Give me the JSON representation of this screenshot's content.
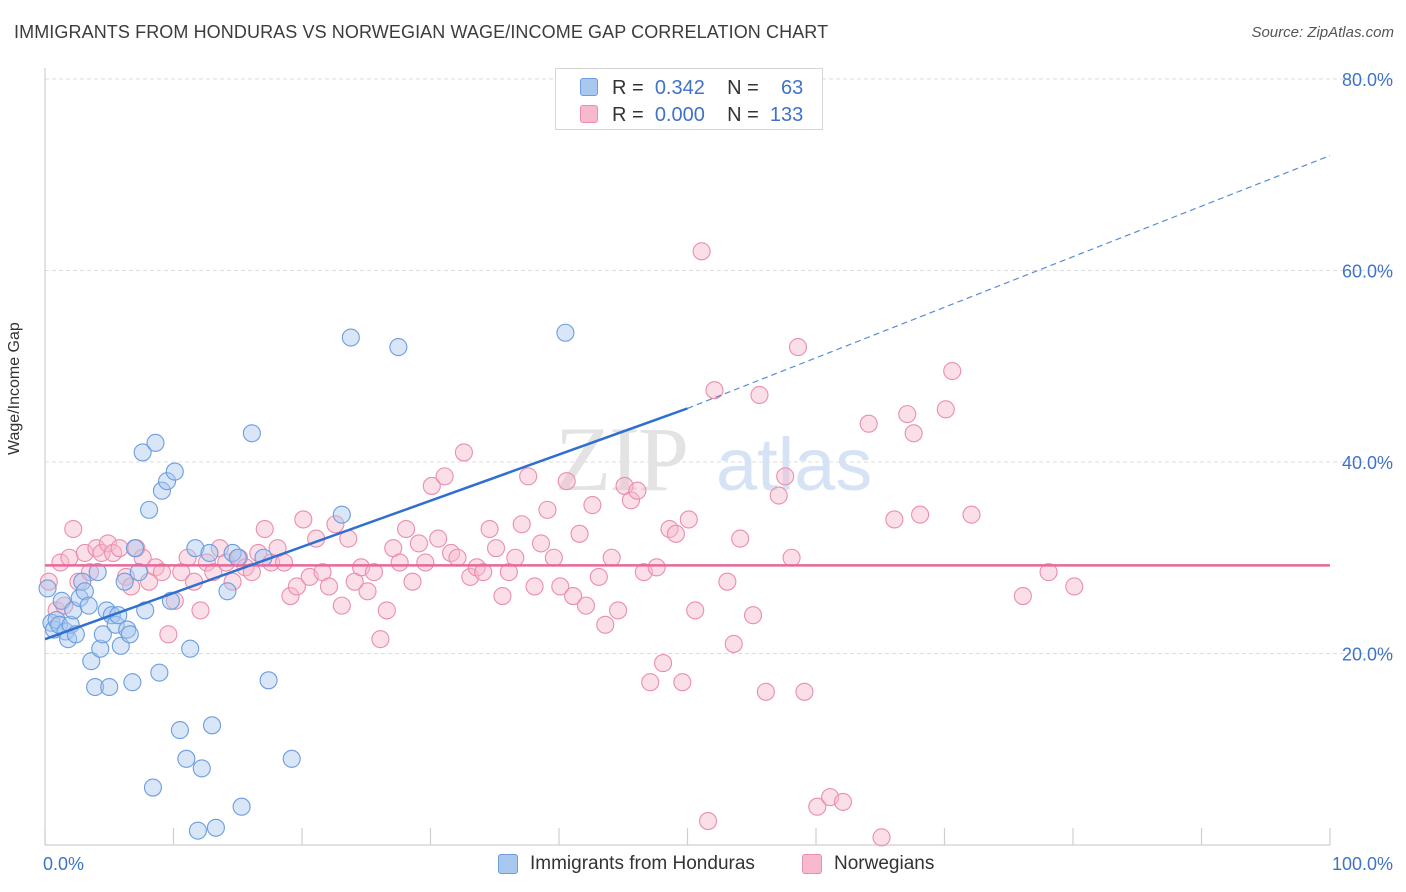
{
  "header": {
    "title": "IMMIGRANTS FROM HONDURAS VS NORWEGIAN WAGE/INCOME GAP CORRELATION CHART",
    "source": "Source: ZipAtlas.com"
  },
  "legend_top": {
    "rows": [
      {
        "r_label": "R =",
        "r_value": "0.342",
        "n_label": "N =",
        "n_value": "63"
      },
      {
        "r_label": "R =",
        "r_value": "0.000",
        "n_label": "N =",
        "n_value": "133"
      }
    ]
  },
  "legend_bottom": [
    "Immigrants from Honduras",
    "Norwegians"
  ],
  "watermark": {
    "zip": "ZIP",
    "atlas": "atlas"
  },
  "colors": {
    "blue_fill": "#a9c8f0",
    "blue_stroke": "#6b9de0",
    "blue_line": "#2f6fd0",
    "pink_fill": "#f6b9cd",
    "pink_stroke": "#ea8eab",
    "pink_line": "#e8679a",
    "tick_text": "#3f73c8",
    "grid": "#dddddd"
  },
  "chart_data": {
    "type": "scatter",
    "title": "IMMIGRANTS FROM HONDURAS VS NORWEGIAN WAGE/INCOME GAP CORRELATION CHART",
    "xlabel": "",
    "ylabel": "Wage/Income Gap",
    "xlim": [
      0,
      100
    ],
    "ylim": [
      0,
      80
    ],
    "x_tick_labels": [
      "0.0%",
      "100.0%"
    ],
    "y_ticks": [
      20,
      40,
      60,
      80
    ],
    "y_tick_labels": [
      "20.0%",
      "40.0%",
      "60.0%",
      "80.0%"
    ],
    "grid": true,
    "legend_placement": "bottom",
    "series": [
      {
        "name": "Immigrants from Honduras",
        "r": 0.342,
        "n": 63,
        "trend": {
          "x0": 0,
          "y0": 21.5,
          "x1": 50,
          "y1": 45.6,
          "dashed_to_x": 100,
          "dashed_to_y": 72
        },
        "points": [
          [
            0.2,
            26.8
          ],
          [
            0.5,
            23.2
          ],
          [
            0.7,
            22.5
          ],
          [
            0.9,
            23.5
          ],
          [
            1.1,
            23.0
          ],
          [
            1.3,
            25.5
          ],
          [
            1.6,
            22.3
          ],
          [
            1.8,
            21.5
          ],
          [
            2.0,
            23.0
          ],
          [
            2.2,
            24.5
          ],
          [
            2.4,
            22.0
          ],
          [
            2.7,
            25.8
          ],
          [
            2.9,
            27.5
          ],
          [
            3.1,
            26.5
          ],
          [
            3.4,
            25.0
          ],
          [
            3.6,
            19.2
          ],
          [
            3.9,
            16.5
          ],
          [
            4.1,
            28.5
          ],
          [
            4.3,
            20.5
          ],
          [
            4.5,
            22.0
          ],
          [
            4.8,
            24.5
          ],
          [
            5.0,
            16.5
          ],
          [
            5.2,
            24.0
          ],
          [
            5.5,
            23.0
          ],
          [
            5.7,
            24.0
          ],
          [
            5.9,
            20.8
          ],
          [
            6.2,
            27.5
          ],
          [
            6.4,
            22.5
          ],
          [
            6.6,
            22.0
          ],
          [
            6.8,
            17.0
          ],
          [
            7.0,
            31.0
          ],
          [
            7.3,
            28.5
          ],
          [
            7.6,
            41.0
          ],
          [
            7.8,
            24.5
          ],
          [
            8.1,
            35.0
          ],
          [
            8.4,
            6.0
          ],
          [
            8.6,
            42.0
          ],
          [
            8.9,
            18.0
          ],
          [
            9.1,
            37.0
          ],
          [
            9.5,
            38.0
          ],
          [
            9.8,
            25.5
          ],
          [
            10.1,
            39.0
          ],
          [
            10.5,
            12.0
          ],
          [
            11.0,
            9.0
          ],
          [
            11.3,
            20.5
          ],
          [
            11.7,
            31.0
          ],
          [
            11.9,
            1.5
          ],
          [
            12.2,
            8.0
          ],
          [
            13.0,
            12.5
          ],
          [
            13.3,
            1.8
          ],
          [
            14.2,
            26.5
          ],
          [
            14.6,
            30.5
          ],
          [
            15.0,
            30.0
          ],
          [
            15.3,
            4.0
          ],
          [
            16.1,
            43.0
          ],
          [
            17.4,
            17.2
          ],
          [
            19.2,
            9.0
          ],
          [
            23.1,
            34.5
          ],
          [
            23.8,
            53.0
          ],
          [
            27.5,
            52.0
          ],
          [
            40.5,
            53.5
          ],
          [
            12.8,
            30.5
          ],
          [
            17.0,
            30.0
          ]
        ]
      },
      {
        "name": "Norwegians",
        "r": 0.0,
        "n": 133,
        "trend": {
          "x0": 0,
          "y0": 29.2,
          "x1": 100,
          "y1": 29.2
        },
        "points": [
          [
            0.3,
            27.5
          ],
          [
            0.9,
            24.5
          ],
          [
            1.2,
            29.5
          ],
          [
            1.5,
            25.0
          ],
          [
            1.9,
            30.0
          ],
          [
            2.2,
            33.0
          ],
          [
            2.6,
            27.5
          ],
          [
            3.1,
            30.5
          ],
          [
            3.5,
            28.5
          ],
          [
            4.0,
            31.0
          ],
          [
            4.4,
            30.5
          ],
          [
            4.9,
            31.5
          ],
          [
            5.3,
            30.5
          ],
          [
            5.8,
            31.0
          ],
          [
            6.3,
            28.0
          ],
          [
            6.7,
            27.0
          ],
          [
            7.1,
            31.0
          ],
          [
            7.6,
            30.0
          ],
          [
            8.1,
            27.5
          ],
          [
            8.6,
            29.0
          ],
          [
            9.1,
            28.5
          ],
          [
            9.6,
            22.0
          ],
          [
            10.1,
            25.5
          ],
          [
            10.6,
            28.5
          ],
          [
            11.1,
            30.0
          ],
          [
            11.6,
            27.5
          ],
          [
            12.1,
            24.5
          ],
          [
            12.6,
            29.5
          ],
          [
            13.1,
            28.5
          ],
          [
            13.6,
            31.0
          ],
          [
            14.1,
            29.5
          ],
          [
            14.6,
            27.5
          ],
          [
            15.1,
            30.0
          ],
          [
            15.6,
            29.0
          ],
          [
            16.1,
            28.5
          ],
          [
            16.6,
            30.5
          ],
          [
            17.1,
            33.0
          ],
          [
            17.6,
            29.5
          ],
          [
            18.1,
            31.0
          ],
          [
            18.6,
            29.5
          ],
          [
            19.1,
            26.0
          ],
          [
            19.6,
            27.0
          ],
          [
            20.1,
            34.0
          ],
          [
            20.6,
            28.0
          ],
          [
            21.1,
            32.0
          ],
          [
            21.6,
            28.5
          ],
          [
            22.1,
            27.0
          ],
          [
            22.6,
            33.5
          ],
          [
            23.1,
            25.0
          ],
          [
            23.6,
            32.0
          ],
          [
            24.1,
            27.5
          ],
          [
            24.6,
            29.0
          ],
          [
            25.1,
            26.5
          ],
          [
            25.6,
            28.5
          ],
          [
            26.1,
            21.5
          ],
          [
            26.6,
            24.5
          ],
          [
            27.1,
            31.0
          ],
          [
            27.6,
            29.5
          ],
          [
            28.1,
            33.0
          ],
          [
            28.6,
            27.5
          ],
          [
            29.1,
            31.5
          ],
          [
            29.6,
            29.5
          ],
          [
            30.1,
            37.5
          ],
          [
            30.6,
            32.0
          ],
          [
            31.1,
            38.5
          ],
          [
            31.6,
            30.5
          ],
          [
            32.1,
            30.0
          ],
          [
            32.6,
            41.0
          ],
          [
            33.1,
            28.0
          ],
          [
            33.6,
            29.0
          ],
          [
            34.1,
            28.5
          ],
          [
            34.6,
            33.0
          ],
          [
            35.1,
            31.0
          ],
          [
            35.6,
            26.0
          ],
          [
            36.1,
            28.5
          ],
          [
            36.6,
            30.0
          ],
          [
            37.1,
            33.5
          ],
          [
            37.6,
            38.5
          ],
          [
            38.1,
            27.0
          ],
          [
            38.6,
            31.5
          ],
          [
            39.1,
            35.0
          ],
          [
            39.6,
            30.0
          ],
          [
            40.1,
            27.0
          ],
          [
            40.6,
            38.0
          ],
          [
            41.1,
            26.0
          ],
          [
            41.6,
            32.5
          ],
          [
            42.1,
            25.0
          ],
          [
            42.6,
            35.5
          ],
          [
            43.1,
            28.0
          ],
          [
            43.6,
            23.0
          ],
          [
            44.1,
            30.0
          ],
          [
            44.6,
            24.5
          ],
          [
            45.1,
            37.5
          ],
          [
            45.6,
            36.0
          ],
          [
            46.1,
            37.0
          ],
          [
            46.6,
            28.5
          ],
          [
            47.1,
            17.0
          ],
          [
            47.6,
            29.0
          ],
          [
            48.1,
            19.0
          ],
          [
            48.6,
            33.0
          ],
          [
            49.1,
            32.5
          ],
          [
            49.6,
            17.0
          ],
          [
            50.1,
            34.0
          ],
          [
            50.6,
            24.5
          ],
          [
            51.1,
            62.0
          ],
          [
            52.1,
            47.5
          ],
          [
            53.1,
            27.5
          ],
          [
            53.6,
            21.0
          ],
          [
            54.1,
            32.0
          ],
          [
            55.1,
            24.0
          ],
          [
            55.6,
            47.0
          ],
          [
            56.1,
            16.0
          ],
          [
            57.1,
            36.5
          ],
          [
            57.6,
            38.5
          ],
          [
            58.1,
            30.0
          ],
          [
            58.6,
            52.0
          ],
          [
            59.1,
            16.0
          ],
          [
            60.1,
            4.0
          ],
          [
            61.1,
            5.0
          ],
          [
            62.1,
            4.5
          ],
          [
            64.1,
            44.0
          ],
          [
            66.1,
            34.0
          ],
          [
            67.1,
            45.0
          ],
          [
            67.6,
            43.0
          ],
          [
            68.1,
            34.5
          ],
          [
            70.1,
            45.5
          ],
          [
            70.6,
            49.5
          ],
          [
            72.1,
            34.5
          ],
          [
            76.1,
            26.0
          ],
          [
            78.1,
            28.5
          ],
          [
            80.1,
            27.0
          ],
          [
            65.1,
            0.8
          ],
          [
            51.6,
            2.5
          ]
        ]
      }
    ]
  }
}
